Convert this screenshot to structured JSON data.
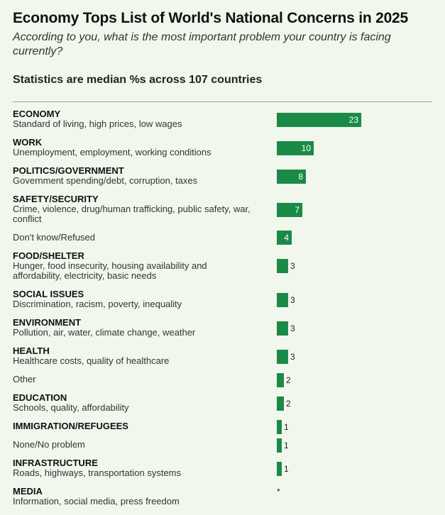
{
  "title": "Economy Tops List of World's National Concerns in 2025",
  "subtitle": "According to you, what is the most important problem your country is facing currently?",
  "stats_note": "Statistics are median %s across 107 countries",
  "colors": {
    "bar": "#1a8a47",
    "background": "#f1f7ec"
  },
  "chart_data": {
    "type": "bar",
    "orientation": "horizontal",
    "title": "Economy Tops List of World's National Concerns in 2025",
    "xlabel": "",
    "ylabel": "",
    "xlim": [
      0,
      23
    ],
    "categories": [
      {
        "category": "ECONOMY",
        "description": "Standard of living, high prices, low wages",
        "value": 23,
        "value_label": "23"
      },
      {
        "category": "WORK",
        "description": "Unemployment, employment, working conditions",
        "value": 10,
        "value_label": "10"
      },
      {
        "category": "POLITICS/GOVERNMENT",
        "description": "Government spending/debt, corruption, taxes",
        "value": 8,
        "value_label": "8"
      },
      {
        "category": "SAFETY/SECURITY",
        "description": "Crime, violence, drug/human trafficking, public safety, war, conflict",
        "value": 7,
        "value_label": "7"
      },
      {
        "category": "",
        "description": "Don't know/Refused",
        "value": 4,
        "value_label": "4"
      },
      {
        "category": "FOOD/SHELTER",
        "description": "Hunger, food insecurity, housing availability and affordability, electricity, basic needs",
        "value": 3,
        "value_label": "3"
      },
      {
        "category": "SOCIAL ISSUES",
        "description": "Discrimination, racism, poverty, inequality",
        "value": 3,
        "value_label": "3"
      },
      {
        "category": "ENVIRONMENT",
        "description": "Pollution, air, water, climate change, weather",
        "value": 3,
        "value_label": "3"
      },
      {
        "category": "HEALTH",
        "description": "Healthcare costs, quality of healthcare",
        "value": 3,
        "value_label": "3"
      },
      {
        "category": "",
        "description": "Other",
        "value": 2,
        "value_label": "2"
      },
      {
        "category": "EDUCATION",
        "description": "Schools, quality, affordability",
        "value": 2,
        "value_label": "2"
      },
      {
        "category": "IMMIGRATION/REFUGEES",
        "description": "",
        "value": 1,
        "value_label": "1"
      },
      {
        "category": "",
        "description": "None/No problem",
        "value": 1,
        "value_label": "1"
      },
      {
        "category": "INFRASTRUCTURE",
        "description": "Roads, highways, transportation systems",
        "value": 1,
        "value_label": "1"
      },
      {
        "category": "MEDIA",
        "description": "Information, social media, press freedom",
        "value": 0,
        "value_label": "*"
      }
    ]
  }
}
